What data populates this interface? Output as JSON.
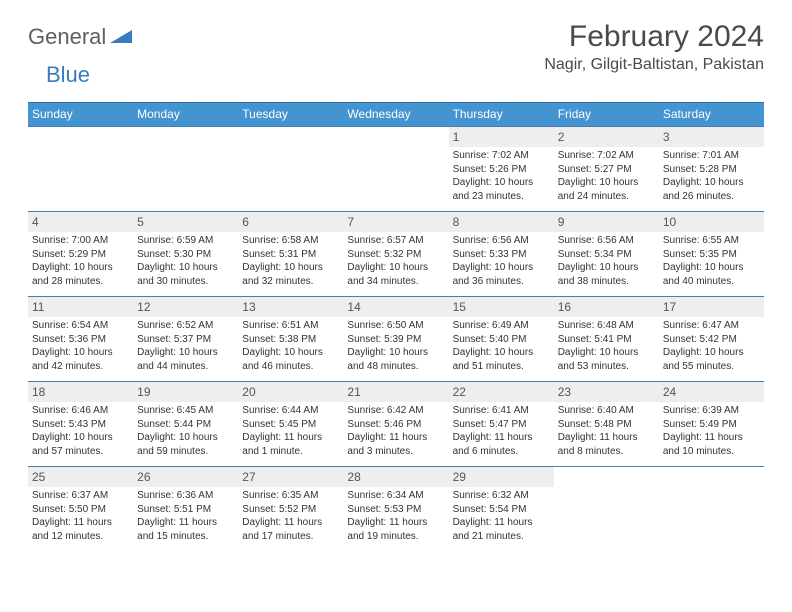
{
  "logo": {
    "text_general": "General",
    "text_blue": "Blue"
  },
  "title": {
    "month": "February 2024",
    "location": "Nagir, Gilgit-Baltistan, Pakistan"
  },
  "colors": {
    "header_bg": "#4394d0",
    "header_border": "#2e6fa3",
    "row_border": "#4a7daf",
    "day_number_bg": "#eeeeee",
    "logo_gray": "#5f5f5f",
    "logo_blue": "#3a7bbf",
    "text": "#333333",
    "title_color": "#4a4a4a"
  },
  "day_labels": [
    "Sunday",
    "Monday",
    "Tuesday",
    "Wednesday",
    "Thursday",
    "Friday",
    "Saturday"
  ],
  "weeks": [
    [
      {
        "empty": true
      },
      {
        "empty": true
      },
      {
        "empty": true
      },
      {
        "empty": true
      },
      {
        "num": "1",
        "sunrise": "Sunrise: 7:02 AM",
        "sunset": "Sunset: 5:26 PM",
        "daylight": "Daylight: 10 hours and 23 minutes."
      },
      {
        "num": "2",
        "sunrise": "Sunrise: 7:02 AM",
        "sunset": "Sunset: 5:27 PM",
        "daylight": "Daylight: 10 hours and 24 minutes."
      },
      {
        "num": "3",
        "sunrise": "Sunrise: 7:01 AM",
        "sunset": "Sunset: 5:28 PM",
        "daylight": "Daylight: 10 hours and 26 minutes."
      }
    ],
    [
      {
        "num": "4",
        "sunrise": "Sunrise: 7:00 AM",
        "sunset": "Sunset: 5:29 PM",
        "daylight": "Daylight: 10 hours and 28 minutes."
      },
      {
        "num": "5",
        "sunrise": "Sunrise: 6:59 AM",
        "sunset": "Sunset: 5:30 PM",
        "daylight": "Daylight: 10 hours and 30 minutes."
      },
      {
        "num": "6",
        "sunrise": "Sunrise: 6:58 AM",
        "sunset": "Sunset: 5:31 PM",
        "daylight": "Daylight: 10 hours and 32 minutes."
      },
      {
        "num": "7",
        "sunrise": "Sunrise: 6:57 AM",
        "sunset": "Sunset: 5:32 PM",
        "daylight": "Daylight: 10 hours and 34 minutes."
      },
      {
        "num": "8",
        "sunrise": "Sunrise: 6:56 AM",
        "sunset": "Sunset: 5:33 PM",
        "daylight": "Daylight: 10 hours and 36 minutes."
      },
      {
        "num": "9",
        "sunrise": "Sunrise: 6:56 AM",
        "sunset": "Sunset: 5:34 PM",
        "daylight": "Daylight: 10 hours and 38 minutes."
      },
      {
        "num": "10",
        "sunrise": "Sunrise: 6:55 AM",
        "sunset": "Sunset: 5:35 PM",
        "daylight": "Daylight: 10 hours and 40 minutes."
      }
    ],
    [
      {
        "num": "11",
        "sunrise": "Sunrise: 6:54 AM",
        "sunset": "Sunset: 5:36 PM",
        "daylight": "Daylight: 10 hours and 42 minutes."
      },
      {
        "num": "12",
        "sunrise": "Sunrise: 6:52 AM",
        "sunset": "Sunset: 5:37 PM",
        "daylight": "Daylight: 10 hours and 44 minutes."
      },
      {
        "num": "13",
        "sunrise": "Sunrise: 6:51 AM",
        "sunset": "Sunset: 5:38 PM",
        "daylight": "Daylight: 10 hours and 46 minutes."
      },
      {
        "num": "14",
        "sunrise": "Sunrise: 6:50 AM",
        "sunset": "Sunset: 5:39 PM",
        "daylight": "Daylight: 10 hours and 48 minutes."
      },
      {
        "num": "15",
        "sunrise": "Sunrise: 6:49 AM",
        "sunset": "Sunset: 5:40 PM",
        "daylight": "Daylight: 10 hours and 51 minutes."
      },
      {
        "num": "16",
        "sunrise": "Sunrise: 6:48 AM",
        "sunset": "Sunset: 5:41 PM",
        "daylight": "Daylight: 10 hours and 53 minutes."
      },
      {
        "num": "17",
        "sunrise": "Sunrise: 6:47 AM",
        "sunset": "Sunset: 5:42 PM",
        "daylight": "Daylight: 10 hours and 55 minutes."
      }
    ],
    [
      {
        "num": "18",
        "sunrise": "Sunrise: 6:46 AM",
        "sunset": "Sunset: 5:43 PM",
        "daylight": "Daylight: 10 hours and 57 minutes."
      },
      {
        "num": "19",
        "sunrise": "Sunrise: 6:45 AM",
        "sunset": "Sunset: 5:44 PM",
        "daylight": "Daylight: 10 hours and 59 minutes."
      },
      {
        "num": "20",
        "sunrise": "Sunrise: 6:44 AM",
        "sunset": "Sunset: 5:45 PM",
        "daylight": "Daylight: 11 hours and 1 minute."
      },
      {
        "num": "21",
        "sunrise": "Sunrise: 6:42 AM",
        "sunset": "Sunset: 5:46 PM",
        "daylight": "Daylight: 11 hours and 3 minutes."
      },
      {
        "num": "22",
        "sunrise": "Sunrise: 6:41 AM",
        "sunset": "Sunset: 5:47 PM",
        "daylight": "Daylight: 11 hours and 6 minutes."
      },
      {
        "num": "23",
        "sunrise": "Sunrise: 6:40 AM",
        "sunset": "Sunset: 5:48 PM",
        "daylight": "Daylight: 11 hours and 8 minutes."
      },
      {
        "num": "24",
        "sunrise": "Sunrise: 6:39 AM",
        "sunset": "Sunset: 5:49 PM",
        "daylight": "Daylight: 11 hours and 10 minutes."
      }
    ],
    [
      {
        "num": "25",
        "sunrise": "Sunrise: 6:37 AM",
        "sunset": "Sunset: 5:50 PM",
        "daylight": "Daylight: 11 hours and 12 minutes."
      },
      {
        "num": "26",
        "sunrise": "Sunrise: 6:36 AM",
        "sunset": "Sunset: 5:51 PM",
        "daylight": "Daylight: 11 hours and 15 minutes."
      },
      {
        "num": "27",
        "sunrise": "Sunrise: 6:35 AM",
        "sunset": "Sunset: 5:52 PM",
        "daylight": "Daylight: 11 hours and 17 minutes."
      },
      {
        "num": "28",
        "sunrise": "Sunrise: 6:34 AM",
        "sunset": "Sunset: 5:53 PM",
        "daylight": "Daylight: 11 hours and 19 minutes."
      },
      {
        "num": "29",
        "sunrise": "Sunrise: 6:32 AM",
        "sunset": "Sunset: 5:54 PM",
        "daylight": "Daylight: 11 hours and 21 minutes."
      },
      {
        "empty": true
      },
      {
        "empty": true
      }
    ]
  ]
}
